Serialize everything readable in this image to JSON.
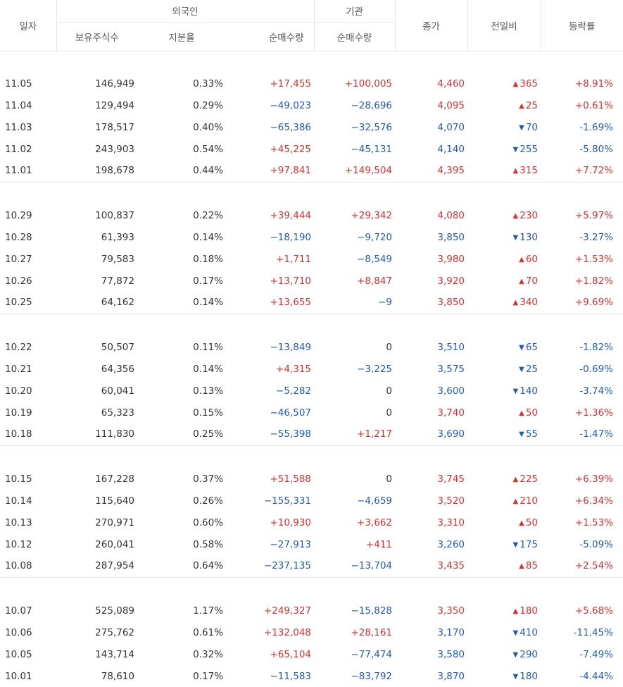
{
  "headers": {
    "date": "일자",
    "foreign": "외국인",
    "institution": "기관",
    "holdings": "보유주식수",
    "share": "지분율",
    "foreign_net": "순매수량",
    "inst_net": "순매수량",
    "close": "종가",
    "change": "전일비",
    "rate": "등락률"
  },
  "groups": [
    [
      {
        "date": "11.05",
        "holdings": "146,949",
        "share": "0.33%",
        "fnet": "+17,455",
        "inet": "+100,005",
        "close": "4,460",
        "dir": "up",
        "change": "365",
        "rate": "+8.91%"
      },
      {
        "date": "11.04",
        "holdings": "129,494",
        "share": "0.29%",
        "fnet": "−49,023",
        "inet": "−28,696",
        "close": "4,095",
        "dir": "up",
        "change": "25",
        "rate": "+0.61%"
      },
      {
        "date": "11.03",
        "holdings": "178,517",
        "share": "0.40%",
        "fnet": "−65,386",
        "inet": "−32,576",
        "close": "4,070",
        "dir": "down",
        "change": "70",
        "rate": "-1.69%"
      },
      {
        "date": "11.02",
        "holdings": "243,903",
        "share": "0.54%",
        "fnet": "+45,225",
        "inet": "−45,131",
        "close": "4,140",
        "dir": "down",
        "change": "255",
        "rate": "-5.80%"
      },
      {
        "date": "11.01",
        "holdings": "198,678",
        "share": "0.44%",
        "fnet": "+97,841",
        "inet": "+149,504",
        "close": "4,395",
        "dir": "up",
        "change": "315",
        "rate": "+7.72%"
      }
    ],
    [
      {
        "date": "10.29",
        "holdings": "100,837",
        "share": "0.22%",
        "fnet": "+39,444",
        "inet": "+29,342",
        "close": "4,080",
        "dir": "up",
        "change": "230",
        "rate": "+5.97%"
      },
      {
        "date": "10.28",
        "holdings": "61,393",
        "share": "0.14%",
        "fnet": "−18,190",
        "inet": "−9,720",
        "close": "3,850",
        "dir": "down",
        "change": "130",
        "rate": "-3.27%"
      },
      {
        "date": "10.27",
        "holdings": "79,583",
        "share": "0.18%",
        "fnet": "+1,711",
        "inet": "−8,549",
        "close": "3,980",
        "dir": "up",
        "change": "60",
        "rate": "+1.53%"
      },
      {
        "date": "10.26",
        "holdings": "77,872",
        "share": "0.17%",
        "fnet": "+13,710",
        "inet": "+8,847",
        "close": "3,920",
        "dir": "up",
        "change": "70",
        "rate": "+1.82%"
      },
      {
        "date": "10.25",
        "holdings": "64,162",
        "share": "0.14%",
        "fnet": "+13,655",
        "inet": "−9",
        "close": "3,850",
        "dir": "up",
        "change": "340",
        "rate": "+9.69%"
      }
    ],
    [
      {
        "date": "10.22",
        "holdings": "50,507",
        "share": "0.11%",
        "fnet": "−13,849",
        "inet": "0",
        "close": "3,510",
        "dir": "down",
        "change": "65",
        "rate": "-1.82%"
      },
      {
        "date": "10.21",
        "holdings": "64,356",
        "share": "0.14%",
        "fnet": "+4,315",
        "inet": "−3,225",
        "close": "3,575",
        "dir": "down",
        "change": "25",
        "rate": "-0.69%"
      },
      {
        "date": "10.20",
        "holdings": "60,041",
        "share": "0.13%",
        "fnet": "−5,282",
        "inet": "0",
        "close": "3,600",
        "dir": "down",
        "change": "140",
        "rate": "-3.74%"
      },
      {
        "date": "10.19",
        "holdings": "65,323",
        "share": "0.15%",
        "fnet": "−46,507",
        "inet": "0",
        "close": "3,740",
        "dir": "up",
        "change": "50",
        "rate": "+1.36%"
      },
      {
        "date": "10.18",
        "holdings": "111,830",
        "share": "0.25%",
        "fnet": "−55,398",
        "inet": "+1,217",
        "close": "3,690",
        "dir": "down",
        "change": "55",
        "rate": "-1.47%"
      }
    ],
    [
      {
        "date": "10.15",
        "holdings": "167,228",
        "share": "0.37%",
        "fnet": "+51,588",
        "inet": "0",
        "close": "3,745",
        "dir": "up",
        "change": "225",
        "rate": "+6.39%"
      },
      {
        "date": "10.14",
        "holdings": "115,640",
        "share": "0.26%",
        "fnet": "−155,331",
        "inet": "−4,659",
        "close": "3,520",
        "dir": "up",
        "change": "210",
        "rate": "+6.34%"
      },
      {
        "date": "10.13",
        "holdings": "270,971",
        "share": "0.60%",
        "fnet": "+10,930",
        "inet": "+3,662",
        "close": "3,310",
        "dir": "up",
        "change": "50",
        "rate": "+1.53%"
      },
      {
        "date": "10.12",
        "holdings": "260,041",
        "share": "0.58%",
        "fnet": "−27,913",
        "inet": "+411",
        "close": "3,260",
        "dir": "down",
        "change": "175",
        "rate": "-5.09%"
      },
      {
        "date": "10.08",
        "holdings": "287,954",
        "share": "0.64%",
        "fnet": "−237,135",
        "inet": "−13,704",
        "close": "3,435",
        "dir": "up",
        "change": "85",
        "rate": "+2.54%"
      }
    ],
    [
      {
        "date": "10.07",
        "holdings": "525,089",
        "share": "1.17%",
        "fnet": "+249,327",
        "inet": "−15,828",
        "close": "3,350",
        "dir": "up",
        "change": "180",
        "rate": "+5.68%"
      },
      {
        "date": "10.06",
        "holdings": "275,762",
        "share": "0.61%",
        "fnet": "+132,048",
        "inet": "+28,161",
        "close": "3,170",
        "dir": "down",
        "change": "410",
        "rate": "-11.45%"
      },
      {
        "date": "10.05",
        "holdings": "143,714",
        "share": "0.32%",
        "fnet": "+65,104",
        "inet": "−77,474",
        "close": "3,580",
        "dir": "down",
        "change": "290",
        "rate": "-7.49%"
      },
      {
        "date": "10.01",
        "holdings": "78,610",
        "share": "0.17%",
        "fnet": "−11,583",
        "inet": "−83,792",
        "close": "3,870",
        "dir": "down",
        "change": "180",
        "rate": "-4.44%"
      }
    ]
  ],
  "icons": {
    "up": "triangle-up-icon",
    "down": "triangle-down-icon"
  },
  "colors": {
    "up": "#e22d2d",
    "down": "#1f59c1"
  }
}
